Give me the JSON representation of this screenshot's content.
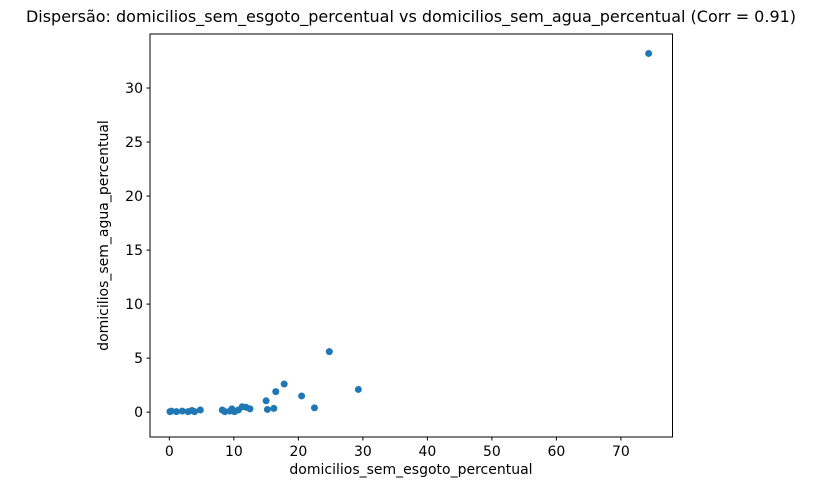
{
  "figure": {
    "background": "#ffffff",
    "spine_color": "#000000",
    "text_color": "#000000"
  },
  "chart_data": {
    "type": "scatter",
    "title": "Dispersão: domicilios_sem_esgoto_percentual vs domicilios_sem_agua_percentual (Corr = 0.91)",
    "xlabel": "domicilios_sem_esgoto_percentual",
    "ylabel": "domicilios_sem_agua_percentual",
    "correlation": 0.91,
    "marker_color": "#1f77b4",
    "grid": false,
    "legend": "none",
    "xlim": [
      -3,
      78
    ],
    "ylim": [
      -2.3,
      35
    ],
    "x_ticks": [
      0,
      10,
      20,
      30,
      40,
      50,
      60,
      70
    ],
    "y_ticks": [
      0,
      5,
      10,
      15,
      20,
      25,
      30
    ],
    "points": [
      [
        0.1,
        0.05
      ],
      [
        0.3,
        0.1
      ],
      [
        1.1,
        0.05
      ],
      [
        2.0,
        0.1
      ],
      [
        2.9,
        0.05
      ],
      [
        3.5,
        0.15
      ],
      [
        3.9,
        0.05
      ],
      [
        4.8,
        0.2
      ],
      [
        8.2,
        0.2
      ],
      [
        8.6,
        0.05
      ],
      [
        9.4,
        0.1
      ],
      [
        9.7,
        0.3
      ],
      [
        10.1,
        0.05
      ],
      [
        10.7,
        0.2
      ],
      [
        11.3,
        0.5
      ],
      [
        11.9,
        0.45
      ],
      [
        12.5,
        0.3
      ],
      [
        15.0,
        1.05
      ],
      [
        15.2,
        0.25
      ],
      [
        16.2,
        0.35
      ],
      [
        16.5,
        1.9
      ],
      [
        17.8,
        2.6
      ],
      [
        20.5,
        1.5
      ],
      [
        22.5,
        0.4
      ],
      [
        24.8,
        5.6
      ],
      [
        29.3,
        2.1
      ],
      [
        74.3,
        33.2
      ]
    ]
  }
}
